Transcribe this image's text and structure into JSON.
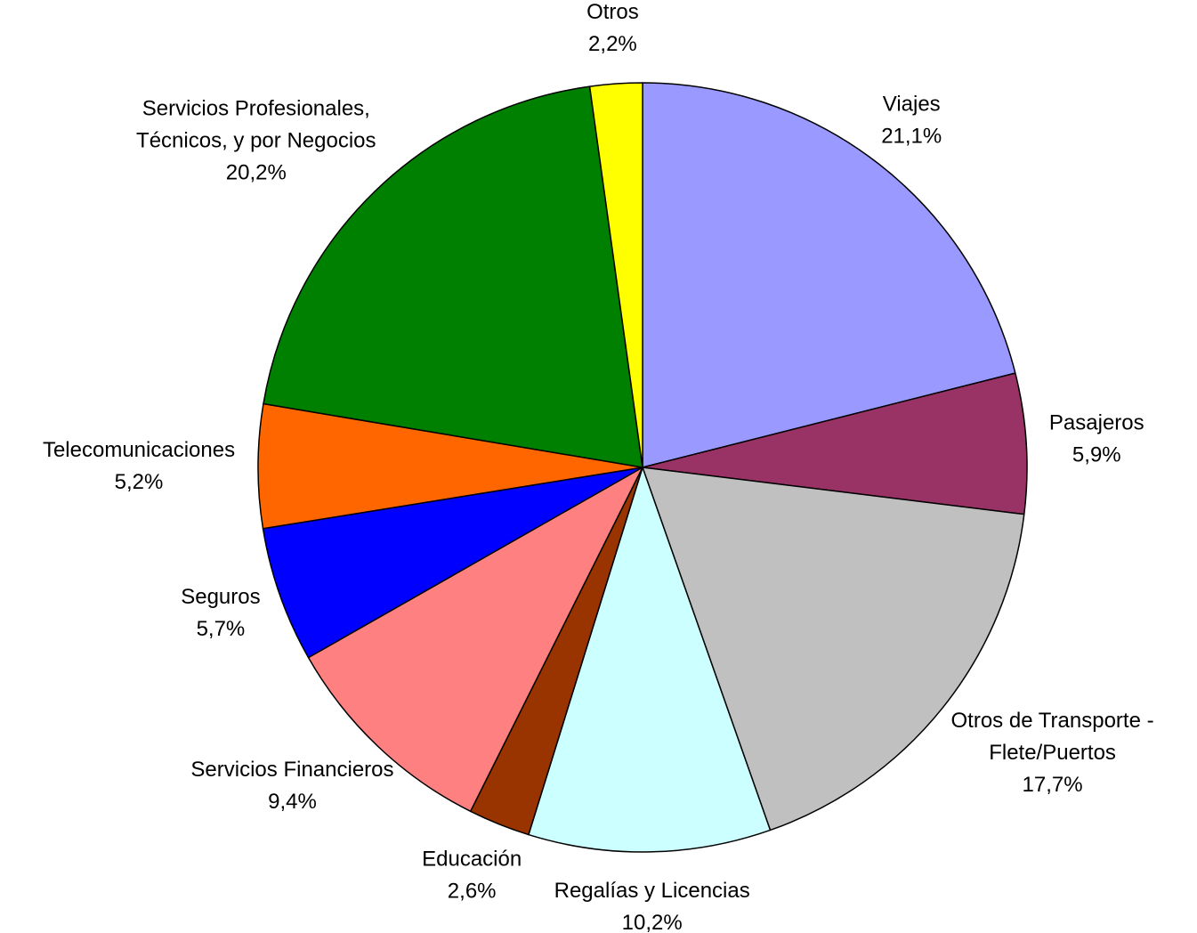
{
  "chart_data": {
    "type": "pie",
    "categories": [
      "Viajes",
      "Pasajeros",
      "Otros de Transporte - Flete/Puertos",
      "Regalías y Licencias",
      "Educación",
      "Servicios Financieros",
      "Seguros",
      "Telecomunicaciones",
      "Servicios Profesionales, Técnicos, y por Negocios",
      "Otros"
    ],
    "values": [
      21.1,
      5.9,
      17.7,
      10.2,
      2.6,
      9.4,
      5.7,
      5.2,
      20.2,
      2.2
    ],
    "value_labels": [
      "21,1%",
      "5,9%",
      "17,7%",
      "10,2%",
      "2,6%",
      "9,4%",
      "5,7%",
      "5,2%",
      "20,2%",
      "2,2%"
    ],
    "colors": [
      "#9999ff",
      "#993366",
      "#c0c0c0",
      "#ccffff",
      "#993300",
      "#ff8080",
      "#0000ff",
      "#ff6600",
      "#008000",
      "#ffff00"
    ]
  }
}
